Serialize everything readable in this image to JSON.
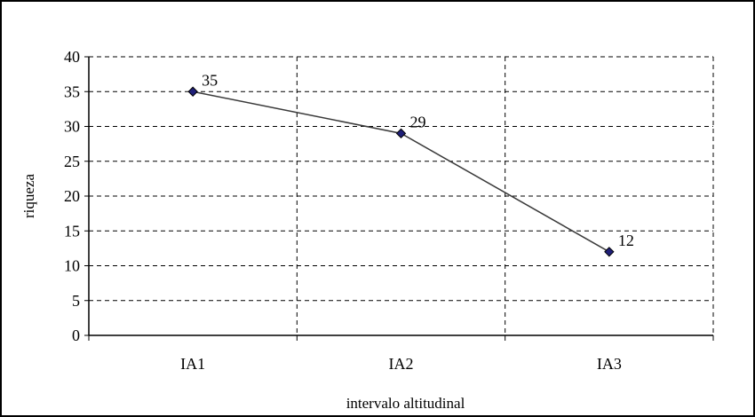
{
  "chart_data": {
    "type": "line",
    "title": "",
    "xlabel": "intervalo altitudinal",
    "ylabel": "riqueza",
    "categories": [
      "IA1",
      "IA2",
      "IA3"
    ],
    "series": [
      {
        "values": [
          35,
          29,
          12
        ]
      }
    ],
    "data_labels": [
      "35",
      "29",
      "12"
    ],
    "ylim": [
      0,
      40
    ],
    "yticks": [
      0,
      5,
      10,
      15,
      20,
      25,
      30,
      35,
      40
    ],
    "grid": true,
    "grid_style": "dashed",
    "legend": "none",
    "colors": {
      "line": "#3a3a3a",
      "marker_fill": "#1f1f78",
      "marker_stroke": "#000000",
      "grid": "#000000"
    }
  }
}
